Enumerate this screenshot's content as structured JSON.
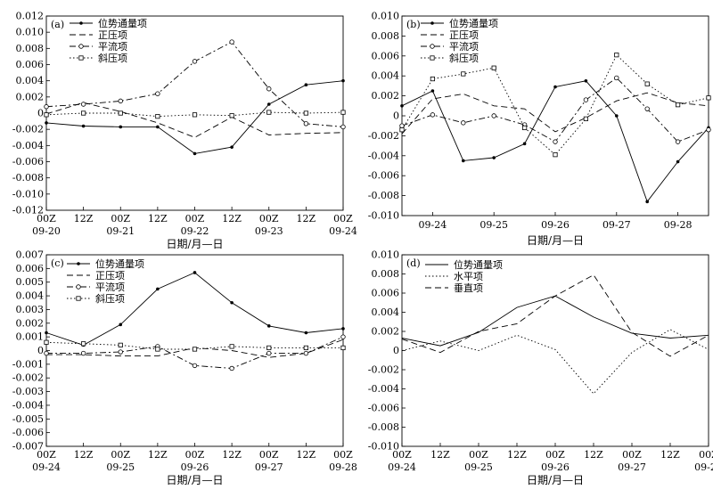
{
  "chart_data": [
    {
      "type": "line",
      "panel": "(a)",
      "xlabel": "日期/月—日",
      "x_ticks": [
        [
          "00Z",
          "09-20"
        ],
        [
          "12Z",
          ""
        ],
        [
          "00Z",
          "09-21"
        ],
        [
          "12Z",
          ""
        ],
        [
          "00Z",
          "09-22"
        ],
        [
          "12Z",
          ""
        ],
        [
          "00Z",
          "09-23"
        ],
        [
          "12Z",
          ""
        ],
        [
          "00Z",
          "09-24"
        ]
      ],
      "ylim": [
        -0.012,
        0.012
      ],
      "y_ticks": [
        "0.012",
        "0.010",
        "0.008",
        "0.006",
        "0.004",
        "0.002",
        "0",
        "-0.002",
        "-0.004",
        "-0.006",
        "-0.008",
        "-0.010",
        "-0.012"
      ],
      "legend": [
        "位势通量项",
        "正压项",
        "平流项",
        "斜压项"
      ],
      "series": [
        {
          "name": "位势通量项",
          "style": "solid",
          "marker": "dot",
          "values": [
            -0.0012,
            -0.0016,
            -0.0017,
            -0.0017,
            -0.005,
            -0.0042,
            0.0011,
            0.0035,
            0.004
          ]
        },
        {
          "name": "正压项",
          "style": "dash",
          "marker": "none",
          "values": [
            -0.0001,
            0.0013,
            0.0002,
            -0.0012,
            -0.003,
            -0.0005,
            -0.0027,
            -0.0025,
            -0.0024
          ]
        },
        {
          "name": "平流项",
          "style": "dashdot",
          "marker": "circle",
          "values": [
            0.0008,
            0.0011,
            0.0015,
            0.0024,
            0.0064,
            0.0088,
            0.003,
            -0.0013,
            -0.0017
          ]
        },
        {
          "name": "斜压项",
          "style": "dot",
          "marker": "square",
          "values": [
            -0.0002,
            0.0,
            0.0,
            -0.0004,
            -0.0002,
            -0.0003,
            0.0001,
            0.0,
            0.0001
          ]
        }
      ]
    },
    {
      "type": "line",
      "panel": "(b)",
      "xlabel": "日期/月—日",
      "x_ticks": [
        "09-24",
        "09-25",
        "09-26",
        "09-27",
        "09-28"
      ],
      "ylim": [
        -0.01,
        0.01
      ],
      "y_ticks": [
        "0.010",
        "0.008",
        "0.006",
        "0.004",
        "0.002",
        "0",
        "-0.002",
        "-0.004",
        "-0.006",
        "-0.008",
        "-0.010"
      ],
      "legend": [
        "位势通量项",
        "正压项",
        "平流项",
        "斜压项"
      ],
      "x": [
        0,
        1,
        2,
        3,
        4,
        5,
        6,
        7,
        8,
        9,
        10
      ],
      "series": [
        {
          "name": "位势通量项",
          "style": "solid",
          "marker": "dot",
          "values": [
            0.001,
            0.0025,
            -0.0045,
            -0.0042,
            -0.0028,
            0.0029,
            0.0035,
            0.0,
            -0.0086,
            -0.0046,
            -0.0012
          ]
        },
        {
          "name": "正压项",
          "style": "dash",
          "marker": "none",
          "values": [
            -0.0018,
            0.0017,
            0.0022,
            0.001,
            0.0007,
            -0.0016,
            -0.0002,
            0.0015,
            0.0023,
            0.0013,
            0.001
          ]
        },
        {
          "name": "平流项",
          "style": "dashdot",
          "marker": "circle",
          "values": [
            -0.001,
            0.0001,
            -0.0007,
            0.0,
            -0.0009,
            -0.0026,
            0.0016,
            0.0038,
            0.0007,
            -0.0026,
            -0.0014
          ]
        },
        {
          "name": "斜压项",
          "style": "dot",
          "marker": "square",
          "values": [
            -0.0014,
            0.0037,
            0.0042,
            0.0048,
            -0.0012,
            -0.0039,
            -0.0003,
            0.0061,
            0.0032,
            0.0011,
            0.0018
          ]
        }
      ]
    },
    {
      "type": "line",
      "panel": "(c)",
      "xlabel": "日期/月—日",
      "x_ticks": [
        [
          "00Z",
          "09-24"
        ],
        [
          "12Z",
          ""
        ],
        [
          "00Z",
          "09-25"
        ],
        [
          "12Z",
          ""
        ],
        [
          "00Z",
          "09-26"
        ],
        [
          "12Z",
          ""
        ],
        [
          "00Z",
          "09-27"
        ],
        [
          "12Z",
          ""
        ],
        [
          "00Z",
          "09-28"
        ]
      ],
      "ylim": [
        -0.007,
        0.007
      ],
      "y_ticks": [
        "0.007",
        "0.006",
        "0.005",
        "0.004",
        "0.003",
        "0.002",
        "0.001",
        "0",
        "-0.001",
        "-0.002",
        "-0.003",
        "-0.004",
        "-0.005",
        "-0.006",
        "-0.007"
      ],
      "legend": [
        "位势通量项",
        "正压项",
        "平流项",
        "斜压项"
      ],
      "series": [
        {
          "name": "位势通量项",
          "style": "solid",
          "marker": "dot",
          "values": [
            0.0013,
            0.0004,
            0.0019,
            0.0045,
            0.0057,
            0.0035,
            0.0018,
            0.0013,
            0.0016
          ]
        },
        {
          "name": "正压项",
          "style": "dash",
          "marker": "none",
          "values": [
            -0.0003,
            -0.0003,
            -0.0004,
            -0.0004,
            0.0002,
            0.0,
            -0.0005,
            -0.0002,
            0.0008
          ]
        },
        {
          "name": "平流项",
          "style": "dashdot",
          "marker": "circle",
          "values": [
            -0.0002,
            -0.0002,
            -0.0001,
            0.0003,
            -0.0011,
            -0.0013,
            -0.0002,
            -0.0002,
            0.001
          ]
        },
        {
          "name": "斜压项",
          "style": "dot",
          "marker": "square",
          "values": [
            0.0006,
            0.0005,
            0.0004,
            0.0001,
            0.0001,
            0.0003,
            0.0002,
            0.0002,
            0.0002
          ]
        }
      ]
    },
    {
      "type": "line",
      "panel": "(d)",
      "xlabel": "日期/月—日",
      "x_ticks": [
        [
          "00Z",
          "09-24"
        ],
        [
          "12Z",
          ""
        ],
        [
          "00Z",
          "09-25"
        ],
        [
          "12Z",
          ""
        ],
        [
          "00Z",
          "09-26"
        ],
        [
          "12Z",
          ""
        ],
        [
          "00Z",
          "09-27"
        ],
        [
          "12Z",
          ""
        ],
        [
          "00Z",
          "09-28"
        ]
      ],
      "ylim": [
        -0.01,
        0.01
      ],
      "y_ticks": [
        "0.010",
        "0.008",
        "0.006",
        "0.004",
        "0.002",
        "0",
        "-0.002",
        "-0.004",
        "-0.006",
        "-0.008",
        "-0.010"
      ],
      "legend": [
        "位势通量项",
        "水平项",
        "垂直项"
      ],
      "series": [
        {
          "name": "位势通量项",
          "style": "solid",
          "marker": "none",
          "values": [
            0.0013,
            0.0005,
            0.0019,
            0.0045,
            0.0057,
            0.0035,
            0.0018,
            0.0013,
            0.0016
          ]
        },
        {
          "name": "水平项",
          "style": "dot",
          "marker": "none",
          "values": [
            0.0,
            0.001,
            0.0,
            0.0016,
            0.0001,
            -0.0045,
            -0.0002,
            0.0022,
            0.0001
          ]
        },
        {
          "name": "垂直项",
          "style": "dash",
          "marker": "none",
          "values": [
            0.0012,
            -0.0002,
            0.002,
            0.0028,
            0.0057,
            0.0079,
            0.0019,
            -0.0006,
            0.0016
          ]
        }
      ]
    }
  ]
}
